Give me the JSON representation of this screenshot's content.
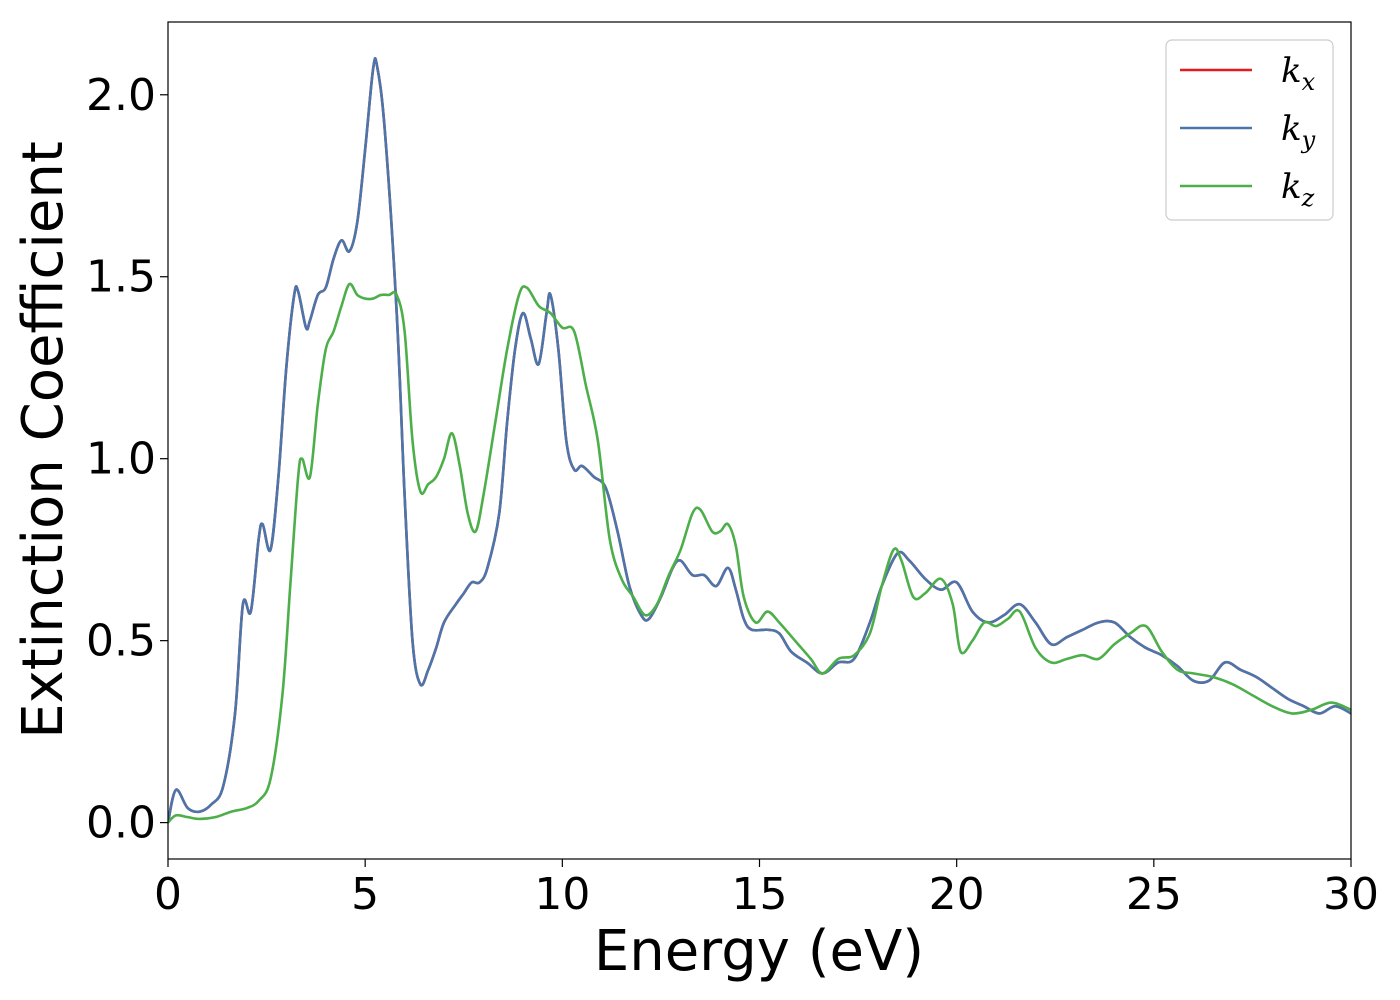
{
  "chart_data": {
    "type": "line",
    "title": "",
    "xlabel": "Energy (eV)",
    "ylabel": "Extinction Coefficient",
    "xlim": [
      0,
      30
    ],
    "ylim": [
      -0.1,
      2.2
    ],
    "xticks": [
      0,
      5,
      10,
      15,
      20,
      25,
      30
    ],
    "xtick_labels": [
      "0",
      "5",
      "10",
      "15",
      "20",
      "25",
      "30"
    ],
    "yticks": [
      0.0,
      0.5,
      1.0,
      1.5,
      2.0
    ],
    "ytick_labels": [
      "0.0",
      "0.5",
      "1.0",
      "1.5",
      "2.0"
    ],
    "grid": false,
    "legend_position": "top-right",
    "series": [
      {
        "name": "k_x",
        "legend_main": "k",
        "legend_sub": "x",
        "color": "#e41a1c",
        "points": [
          [
            0,
            0.0
          ],
          [
            0.2,
            0.09
          ],
          [
            0.5,
            0.04
          ],
          [
            0.8,
            0.03
          ],
          [
            1.1,
            0.05
          ],
          [
            1.4,
            0.1
          ],
          [
            1.7,
            0.3
          ],
          [
            1.9,
            0.6
          ],
          [
            2.1,
            0.58
          ],
          [
            2.3,
            0.78
          ],
          [
            2.4,
            0.82
          ],
          [
            2.6,
            0.75
          ],
          [
            2.8,
            0.95
          ],
          [
            3.0,
            1.25
          ],
          [
            3.2,
            1.45
          ],
          [
            3.3,
            1.46
          ],
          [
            3.5,
            1.36
          ],
          [
            3.6,
            1.38
          ],
          [
            3.8,
            1.45
          ],
          [
            4.0,
            1.47
          ],
          [
            4.2,
            1.55
          ],
          [
            4.4,
            1.6
          ],
          [
            4.6,
            1.57
          ],
          [
            4.8,
            1.65
          ],
          [
            5.0,
            1.85
          ],
          [
            5.2,
            2.07
          ],
          [
            5.3,
            2.08
          ],
          [
            5.5,
            1.9
          ],
          [
            5.8,
            1.4
          ],
          [
            6.0,
            0.9
          ],
          [
            6.2,
            0.5
          ],
          [
            6.4,
            0.38
          ],
          [
            6.6,
            0.42
          ],
          [
            6.8,
            0.48
          ],
          [
            7.0,
            0.55
          ],
          [
            7.3,
            0.6
          ],
          [
            7.5,
            0.63
          ],
          [
            7.7,
            0.66
          ],
          [
            7.9,
            0.66
          ],
          [
            8.1,
            0.7
          ],
          [
            8.4,
            0.85
          ],
          [
            8.6,
            1.1
          ],
          [
            8.8,
            1.3
          ],
          [
            9.0,
            1.4
          ],
          [
            9.2,
            1.33
          ],
          [
            9.4,
            1.26
          ],
          [
            9.6,
            1.4
          ],
          [
            9.7,
            1.45
          ],
          [
            9.9,
            1.3
          ],
          [
            10.1,
            1.05
          ],
          [
            10.3,
            0.97
          ],
          [
            10.5,
            0.98
          ],
          [
            10.8,
            0.95
          ],
          [
            11.1,
            0.92
          ],
          [
            11.4,
            0.8
          ],
          [
            11.7,
            0.65
          ],
          [
            12.0,
            0.57
          ],
          [
            12.2,
            0.56
          ],
          [
            12.5,
            0.62
          ],
          [
            12.8,
            0.7
          ],
          [
            13.0,
            0.72
          ],
          [
            13.3,
            0.68
          ],
          [
            13.6,
            0.68
          ],
          [
            13.9,
            0.65
          ],
          [
            14.2,
            0.7
          ],
          [
            14.4,
            0.64
          ],
          [
            14.6,
            0.56
          ],
          [
            14.8,
            0.53
          ],
          [
            15.2,
            0.53
          ],
          [
            15.5,
            0.52
          ],
          [
            15.8,
            0.47
          ],
          [
            16.2,
            0.44
          ],
          [
            16.6,
            0.41
          ],
          [
            17.0,
            0.44
          ],
          [
            17.4,
            0.45
          ],
          [
            17.8,
            0.55
          ],
          [
            18.1,
            0.65
          ],
          [
            18.5,
            0.74
          ],
          [
            18.8,
            0.72
          ],
          [
            19.2,
            0.67
          ],
          [
            19.6,
            0.64
          ],
          [
            20.0,
            0.66
          ],
          [
            20.4,
            0.58
          ],
          [
            20.8,
            0.55
          ],
          [
            21.2,
            0.57
          ],
          [
            21.6,
            0.6
          ],
          [
            22.0,
            0.55
          ],
          [
            22.4,
            0.49
          ],
          [
            22.8,
            0.51
          ],
          [
            23.2,
            0.53
          ],
          [
            23.6,
            0.55
          ],
          [
            24.0,
            0.55
          ],
          [
            24.4,
            0.51
          ],
          [
            24.8,
            0.48
          ],
          [
            25.2,
            0.46
          ],
          [
            25.6,
            0.43
          ],
          [
            26.0,
            0.39
          ],
          [
            26.4,
            0.39
          ],
          [
            26.8,
            0.44
          ],
          [
            27.2,
            0.42
          ],
          [
            27.6,
            0.4
          ],
          [
            28.0,
            0.37
          ],
          [
            28.4,
            0.34
          ],
          [
            28.8,
            0.32
          ],
          [
            29.2,
            0.3
          ],
          [
            29.6,
            0.32
          ],
          [
            30.0,
            0.3
          ]
        ]
      },
      {
        "name": "k_y",
        "legend_main": "k",
        "legend_sub": "y",
        "color": "#4a76ac",
        "points": [
          [
            0,
            0.0
          ],
          [
            0.2,
            0.09
          ],
          [
            0.5,
            0.04
          ],
          [
            0.8,
            0.03
          ],
          [
            1.1,
            0.05
          ],
          [
            1.4,
            0.1
          ],
          [
            1.7,
            0.3
          ],
          [
            1.9,
            0.6
          ],
          [
            2.1,
            0.58
          ],
          [
            2.3,
            0.78
          ],
          [
            2.4,
            0.82
          ],
          [
            2.6,
            0.75
          ],
          [
            2.8,
            0.95
          ],
          [
            3.0,
            1.25
          ],
          [
            3.2,
            1.45
          ],
          [
            3.3,
            1.46
          ],
          [
            3.5,
            1.36
          ],
          [
            3.6,
            1.38
          ],
          [
            3.8,
            1.45
          ],
          [
            4.0,
            1.47
          ],
          [
            4.2,
            1.55
          ],
          [
            4.4,
            1.6
          ],
          [
            4.6,
            1.57
          ],
          [
            4.8,
            1.65
          ],
          [
            5.0,
            1.85
          ],
          [
            5.2,
            2.07
          ],
          [
            5.3,
            2.08
          ],
          [
            5.5,
            1.9
          ],
          [
            5.8,
            1.4
          ],
          [
            6.0,
            0.9
          ],
          [
            6.2,
            0.5
          ],
          [
            6.4,
            0.38
          ],
          [
            6.6,
            0.42
          ],
          [
            6.8,
            0.48
          ],
          [
            7.0,
            0.55
          ],
          [
            7.3,
            0.6
          ],
          [
            7.5,
            0.63
          ],
          [
            7.7,
            0.66
          ],
          [
            7.9,
            0.66
          ],
          [
            8.1,
            0.7
          ],
          [
            8.4,
            0.85
          ],
          [
            8.6,
            1.1
          ],
          [
            8.8,
            1.3
          ],
          [
            9.0,
            1.4
          ],
          [
            9.2,
            1.33
          ],
          [
            9.4,
            1.26
          ],
          [
            9.6,
            1.4
          ],
          [
            9.7,
            1.45
          ],
          [
            9.9,
            1.3
          ],
          [
            10.1,
            1.05
          ],
          [
            10.3,
            0.97
          ],
          [
            10.5,
            0.98
          ],
          [
            10.8,
            0.95
          ],
          [
            11.1,
            0.92
          ],
          [
            11.4,
            0.8
          ],
          [
            11.7,
            0.65
          ],
          [
            12.0,
            0.57
          ],
          [
            12.2,
            0.56
          ],
          [
            12.5,
            0.62
          ],
          [
            12.8,
            0.7
          ],
          [
            13.0,
            0.72
          ],
          [
            13.3,
            0.68
          ],
          [
            13.6,
            0.68
          ],
          [
            13.9,
            0.65
          ],
          [
            14.2,
            0.7
          ],
          [
            14.4,
            0.64
          ],
          [
            14.6,
            0.56
          ],
          [
            14.8,
            0.53
          ],
          [
            15.2,
            0.53
          ],
          [
            15.5,
            0.52
          ],
          [
            15.8,
            0.47
          ],
          [
            16.2,
            0.44
          ],
          [
            16.6,
            0.41
          ],
          [
            17.0,
            0.44
          ],
          [
            17.4,
            0.45
          ],
          [
            17.8,
            0.55
          ],
          [
            18.1,
            0.65
          ],
          [
            18.5,
            0.74
          ],
          [
            18.8,
            0.72
          ],
          [
            19.2,
            0.67
          ],
          [
            19.6,
            0.64
          ],
          [
            20.0,
            0.66
          ],
          [
            20.4,
            0.58
          ],
          [
            20.8,
            0.55
          ],
          [
            21.2,
            0.57
          ],
          [
            21.6,
            0.6
          ],
          [
            22.0,
            0.55
          ],
          [
            22.4,
            0.49
          ],
          [
            22.8,
            0.51
          ],
          [
            23.2,
            0.53
          ],
          [
            23.6,
            0.55
          ],
          [
            24.0,
            0.55
          ],
          [
            24.4,
            0.51
          ],
          [
            24.8,
            0.48
          ],
          [
            25.2,
            0.46
          ],
          [
            25.6,
            0.43
          ],
          [
            26.0,
            0.39
          ],
          [
            26.4,
            0.39
          ],
          [
            26.8,
            0.44
          ],
          [
            27.2,
            0.42
          ],
          [
            27.6,
            0.4
          ],
          [
            28.0,
            0.37
          ],
          [
            28.4,
            0.34
          ],
          [
            28.8,
            0.32
          ],
          [
            29.2,
            0.3
          ],
          [
            29.6,
            0.32
          ],
          [
            30.0,
            0.3
          ]
        ]
      },
      {
        "name": "k_z",
        "legend_main": "k",
        "legend_sub": "z",
        "color": "#4daf4a",
        "points": [
          [
            0,
            0.0
          ],
          [
            0.2,
            0.02
          ],
          [
            0.5,
            0.015
          ],
          [
            0.8,
            0.01
          ],
          [
            1.2,
            0.015
          ],
          [
            1.6,
            0.03
          ],
          [
            2.0,
            0.04
          ],
          [
            2.3,
            0.06
          ],
          [
            2.6,
            0.12
          ],
          [
            2.9,
            0.35
          ],
          [
            3.1,
            0.65
          ],
          [
            3.3,
            0.95
          ],
          [
            3.4,
            1.0
          ],
          [
            3.6,
            0.95
          ],
          [
            3.8,
            1.15
          ],
          [
            4.0,
            1.3
          ],
          [
            4.2,
            1.35
          ],
          [
            4.4,
            1.42
          ],
          [
            4.6,
            1.48
          ],
          [
            4.8,
            1.45
          ],
          [
            5.0,
            1.44
          ],
          [
            5.2,
            1.44
          ],
          [
            5.4,
            1.45
          ],
          [
            5.6,
            1.45
          ],
          [
            5.8,
            1.45
          ],
          [
            6.0,
            1.35
          ],
          [
            6.2,
            1.05
          ],
          [
            6.4,
            0.91
          ],
          [
            6.6,
            0.93
          ],
          [
            6.8,
            0.95
          ],
          [
            7.0,
            1.0
          ],
          [
            7.2,
            1.07
          ],
          [
            7.4,
            0.98
          ],
          [
            7.6,
            0.85
          ],
          [
            7.8,
            0.8
          ],
          [
            8.0,
            0.9
          ],
          [
            8.3,
            1.1
          ],
          [
            8.6,
            1.3
          ],
          [
            8.9,
            1.45
          ],
          [
            9.1,
            1.47
          ],
          [
            9.4,
            1.42
          ],
          [
            9.7,
            1.4
          ],
          [
            10.0,
            1.36
          ],
          [
            10.3,
            1.35
          ],
          [
            10.6,
            1.2
          ],
          [
            10.9,
            1.05
          ],
          [
            11.2,
            0.78
          ],
          [
            11.5,
            0.67
          ],
          [
            11.8,
            0.62
          ],
          [
            12.1,
            0.57
          ],
          [
            12.4,
            0.6
          ],
          [
            12.7,
            0.68
          ],
          [
            13.0,
            0.75
          ],
          [
            13.3,
            0.85
          ],
          [
            13.5,
            0.86
          ],
          [
            13.8,
            0.8
          ],
          [
            14.0,
            0.8
          ],
          [
            14.2,
            0.82
          ],
          [
            14.4,
            0.76
          ],
          [
            14.6,
            0.62
          ],
          [
            14.9,
            0.55
          ],
          [
            15.2,
            0.58
          ],
          [
            15.5,
            0.55
          ],
          [
            15.9,
            0.5
          ],
          [
            16.3,
            0.45
          ],
          [
            16.6,
            0.41
          ],
          [
            17.0,
            0.45
          ],
          [
            17.4,
            0.46
          ],
          [
            17.8,
            0.52
          ],
          [
            18.1,
            0.65
          ],
          [
            18.4,
            0.75
          ],
          [
            18.6,
            0.72
          ],
          [
            18.9,
            0.62
          ],
          [
            19.2,
            0.63
          ],
          [
            19.6,
            0.67
          ],
          [
            19.9,
            0.6
          ],
          [
            20.1,
            0.47
          ],
          [
            20.4,
            0.5
          ],
          [
            20.7,
            0.55
          ],
          [
            21.0,
            0.54
          ],
          [
            21.3,
            0.56
          ],
          [
            21.6,
            0.58
          ],
          [
            22.0,
            0.48
          ],
          [
            22.4,
            0.44
          ],
          [
            22.8,
            0.45
          ],
          [
            23.2,
            0.46
          ],
          [
            23.6,
            0.45
          ],
          [
            24.0,
            0.49
          ],
          [
            24.4,
            0.52
          ],
          [
            24.8,
            0.54
          ],
          [
            25.2,
            0.47
          ],
          [
            25.6,
            0.42
          ],
          [
            26.0,
            0.41
          ],
          [
            26.5,
            0.4
          ],
          [
            27.0,
            0.38
          ],
          [
            27.5,
            0.35
          ],
          [
            28.0,
            0.32
          ],
          [
            28.5,
            0.3
          ],
          [
            29.0,
            0.31
          ],
          [
            29.5,
            0.33
          ],
          [
            30.0,
            0.31
          ]
        ]
      }
    ]
  }
}
